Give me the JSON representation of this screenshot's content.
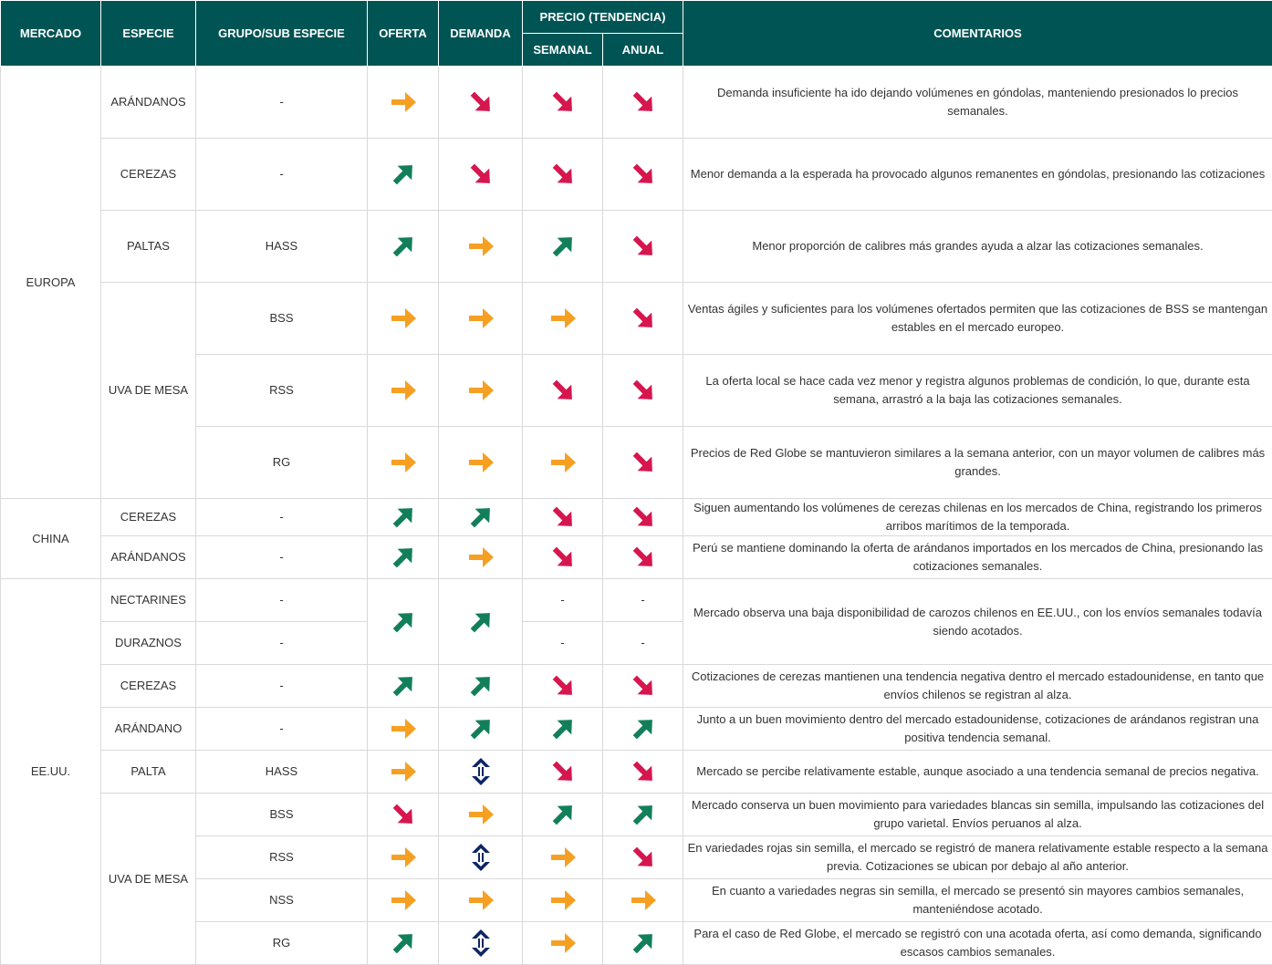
{
  "colors": {
    "header_bg": "#005454",
    "green": "#127f5a",
    "orange": "#f5a023",
    "red": "#d5164f",
    "navy": "#0d2664"
  },
  "header": {
    "mercado": "MERCADO",
    "especie": "ESPECIE",
    "grupo": "GRUPO/SUB ESPECIE",
    "oferta": "OFERTA",
    "demanda": "DEMANDA",
    "precio": "PRECIO (TENDENCIA)",
    "semanal": "SEMANAL",
    "anual": "ANUAL",
    "comentarios": "COMENTARIOS"
  },
  "markets": {
    "europa": "EUROPA",
    "china": "CHINA",
    "eeuu": "EE.UU."
  },
  "rows": [
    {
      "especie": "ARÁNDANOS",
      "grupo": "-",
      "oferta": "right",
      "demanda": "down",
      "semanal": "down",
      "anual": "down",
      "comment": "Demanda insuficiente ha ido dejando volúmenes en góndolas, manteniendo presionados lo precios semanales."
    },
    {
      "especie": "CEREZAS",
      "grupo": "-",
      "oferta": "up",
      "demanda": "down",
      "semanal": "down",
      "anual": "down",
      "comment": "Menor demanda a la esperada ha provocado algunos remanentes en góndolas, presionando las cotizaciones"
    },
    {
      "especie": "PALTAS",
      "grupo": "HASS",
      "oferta": "up",
      "demanda": "right",
      "semanal": "up",
      "anual": "down",
      "comment": "Menor proporción de calibres más grandes ayuda a alzar las cotizaciones semanales."
    },
    {
      "especie": "UVA DE MESA",
      "grupo": "BSS",
      "oferta": "right",
      "demanda": "right",
      "semanal": "right",
      "anual": "down",
      "comment": "Ventas ágiles y suficientes para los volúmenes ofertados permiten que las cotizaciones de BSS se mantengan estables en el mercado europeo."
    },
    {
      "especie": "",
      "grupo": "RSS",
      "oferta": "right",
      "demanda": "right",
      "semanal": "down",
      "anual": "down",
      "comment": "La oferta local se hace cada vez menor y registra algunos problemas de condición, lo que, durante esta semana, arrastró a la baja las cotizaciones semanales."
    },
    {
      "especie": "",
      "grupo": "RG",
      "oferta": "right",
      "demanda": "right",
      "semanal": "right",
      "anual": "down",
      "comment": "Precios de Red Globe se mantuvieron similares a la semana anterior, con un mayor volumen de calibres más grandes."
    },
    {
      "especie": "CEREZAS",
      "grupo": "-",
      "oferta": "up",
      "demanda": "up",
      "semanal": "down",
      "anual": "down",
      "comment": "Siguen aumentando los volúmenes de cerezas chilenas en los mercados de China, registrando los primeros arribos marítimos de la temporada."
    },
    {
      "especie": "ARÁNDANOS",
      "grupo": "-",
      "oferta": "up",
      "demanda": "right",
      "semanal": "down",
      "anual": "down",
      "comment": "Perú se mantiene dominando la oferta de arándanos importados en los mercados de China, presionando las cotizaciones semanales."
    },
    {
      "especie": "NECTARINES",
      "grupo": "-",
      "oferta": "up",
      "demanda": "up",
      "semanal": "-",
      "anual": "-",
      "comment": "Mercado observa una baja disponibilidad de carozos chilenos en EE.UU., con los envíos semanales todavía siendo acotados."
    },
    {
      "especie": "DURAZNOS",
      "grupo": "-",
      "oferta": "",
      "demanda": "",
      "semanal": "-",
      "anual": "-",
      "comment": ""
    },
    {
      "especie": "CEREZAS",
      "grupo": "-",
      "oferta": "up",
      "demanda": "up",
      "semanal": "down",
      "anual": "down",
      "comment": "Cotizaciones de cerezas mantienen una tendencia negativa dentro el mercado estadounidense, en tanto que envíos chilenos se registran al alza."
    },
    {
      "especie": "ARÁNDANO",
      "grupo": "-",
      "oferta": "right",
      "demanda": "up",
      "semanal": "up",
      "anual": "up",
      "comment": "Junto a un buen movimiento dentro del mercado estadounidense, cotizaciones de arándanos registran una positiva tendencia semanal."
    },
    {
      "especie": "PALTA",
      "grupo": "HASS",
      "oferta": "right",
      "demanda": "updown",
      "semanal": "down",
      "anual": "down",
      "comment": "Mercado se percibe relativamente estable, aunque asociado a una tendencia semanal de precios negativa."
    },
    {
      "especie": "UVA DE MESA",
      "grupo": "BSS",
      "oferta": "down",
      "demanda": "right",
      "semanal": "up",
      "anual": "up",
      "comment": "Mercado conserva un buen movimiento para variedades blancas sin semilla, impulsando las cotizaciones del grupo varietal. Envíos peruanos al alza."
    },
    {
      "especie": "",
      "grupo": "RSS",
      "oferta": "right",
      "demanda": "updown",
      "semanal": "right",
      "anual": "down",
      "comment": "En variedades rojas sin semilla, el mercado se registró de manera relativamente estable respecto a la semana previa. Cotizaciones se ubican por debajo al año anterior."
    },
    {
      "especie": "",
      "grupo": "NSS",
      "oferta": "right",
      "demanda": "right",
      "semanal": "right",
      "anual": "right",
      "comment": "En cuanto a variedades negras sin semilla, el mercado se presentó sin mayores cambios semanales, manteniéndose acotado."
    },
    {
      "especie": "",
      "grupo": "RG",
      "oferta": "up",
      "demanda": "updown",
      "semanal": "right",
      "anual": "up",
      "comment": "Para el caso de Red Globe, el mercado se registró con una acotada oferta, así como demanda, significando escasos cambios semanales."
    }
  ]
}
